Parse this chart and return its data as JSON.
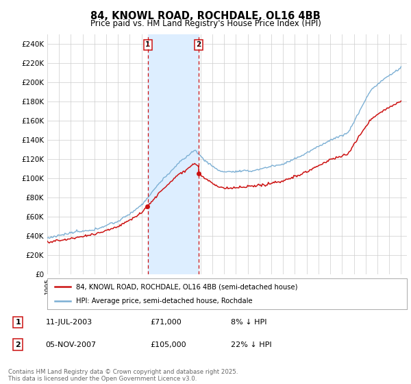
{
  "title": "84, KNOWL ROAD, ROCHDALE, OL16 4BB",
  "subtitle": "Price paid vs. HM Land Registry's House Price Index (HPI)",
  "ylim": [
    0,
    250000
  ],
  "yticks": [
    0,
    20000,
    40000,
    60000,
    80000,
    100000,
    120000,
    140000,
    160000,
    180000,
    200000,
    220000,
    240000
  ],
  "ytick_labels": [
    "£0",
    "£20K",
    "£40K",
    "£60K",
    "£80K",
    "£100K",
    "£120K",
    "£140K",
    "£160K",
    "£180K",
    "£200K",
    "£220K",
    "£240K"
  ],
  "hpi_color": "#7bafd4",
  "price_color": "#cc1111",
  "shading_color": "#ddeeff",
  "annotation1_date": "11-JUL-2003",
  "annotation1_price": "£71,000",
  "annotation1_hpi": "8% ↓ HPI",
  "annotation2_date": "05-NOV-2007",
  "annotation2_price": "£105,000",
  "annotation2_hpi": "22% ↓ HPI",
  "legend_label1": "84, KNOWL ROAD, ROCHDALE, OL16 4BB (semi-detached house)",
  "legend_label2": "HPI: Average price, semi-detached house, Rochdale",
  "footer": "Contains HM Land Registry data © Crown copyright and database right 2025.\nThis data is licensed under the Open Government Licence v3.0.",
  "background_color": "#ffffff",
  "purchase1_year": 2003.53,
  "purchase2_year": 2007.84,
  "purchase1_price": 71000,
  "purchase2_price": 105000
}
